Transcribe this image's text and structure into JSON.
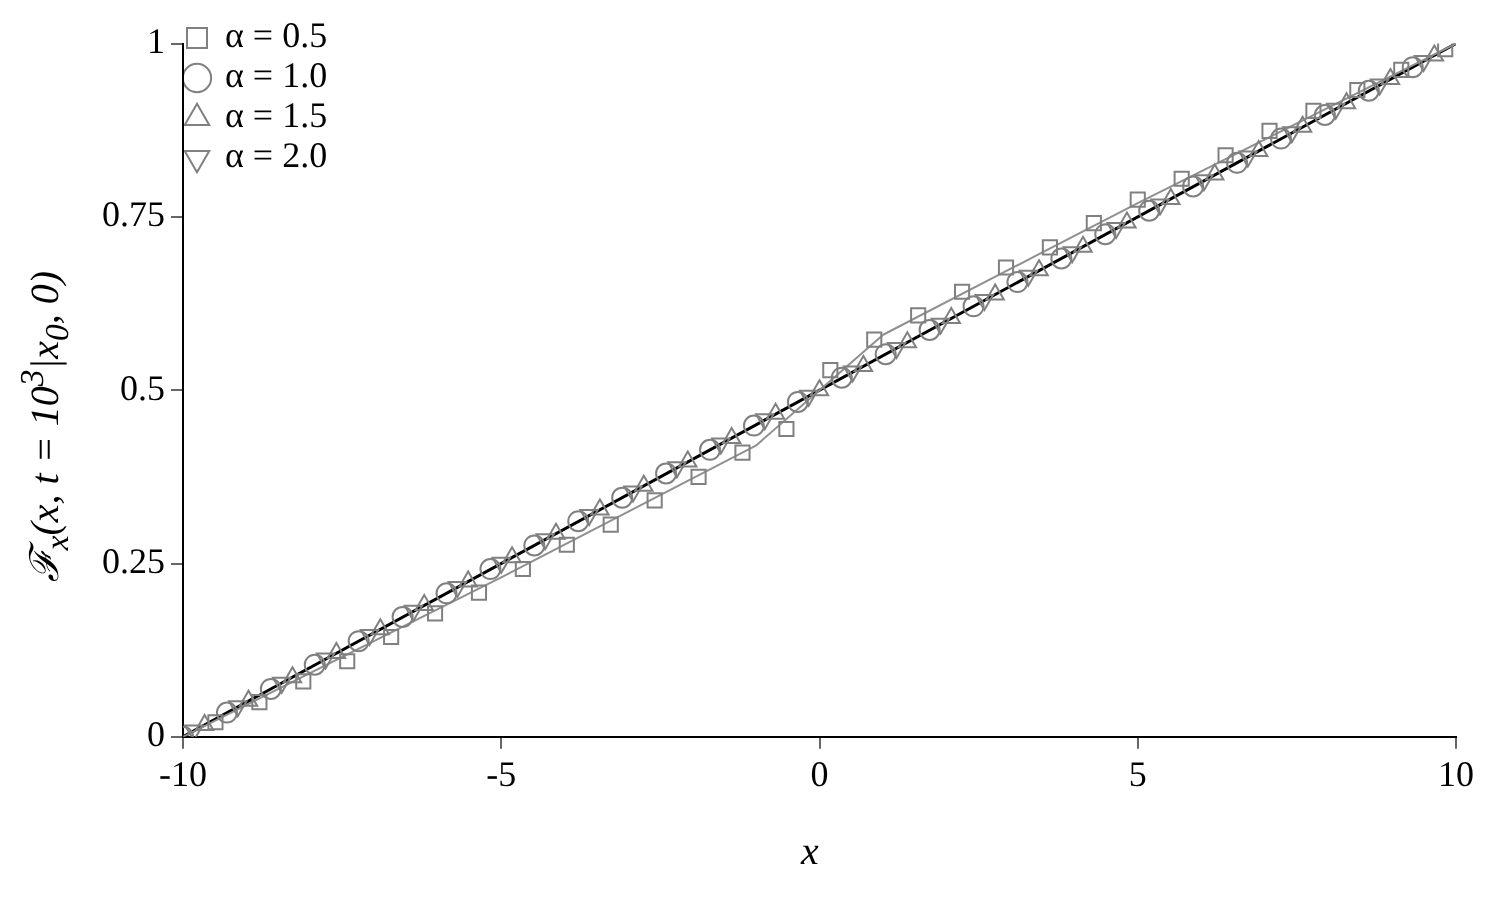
{
  "chart_data": {
    "type": "scatter",
    "xlabel": "x",
    "ylabel": "ℱ$_{x}$(x, t = 10$^{3}$|x$_{0}$, 0)",
    "series": [
      {
        "name": "α = 0.5",
        "marker": "square",
        "color": "#808080",
        "x": [
          -9.49,
          -8.8,
          -8.11,
          -7.42,
          -6.73,
          -6.04,
          -5.35,
          -4.66,
          -3.97,
          -3.28,
          -2.59,
          -1.9,
          -1.21,
          -0.52,
          0.17,
          0.86,
          1.55,
          2.24,
          2.93,
          3.62,
          4.31,
          5,
          5.69,
          6.38,
          7.07,
          7.76,
          8.45,
          9.14,
          9.83
        ],
        "values": [
          0.021,
          0.05,
          0.08,
          0.109,
          0.144,
          0.178,
          0.208,
          0.242,
          0.277,
          0.306,
          0.341,
          0.375,
          0.41,
          0.444,
          0.529,
          0.573,
          0.608,
          0.642,
          0.677,
          0.706,
          0.741,
          0.775,
          0.805,
          0.839,
          0.874,
          0.903,
          0.933,
          0.962,
          0.992
        ]
      },
      {
        "name": "α = 1.0",
        "marker": "circle",
        "color": "#808080",
        "x": [
          -10,
          -9.31,
          -8.62,
          -7.93,
          -7.24,
          -6.55,
          -5.86,
          -5.17,
          -4.48,
          -3.79,
          -3.1,
          -2.41,
          -1.72,
          -1.03,
          -0.34,
          0.35,
          1.04,
          1.73,
          2.42,
          3.11,
          3.8,
          4.49,
          5.18,
          5.87,
          6.56,
          7.25,
          7.94,
          8.63,
          9.32
        ],
        "values": [
          0,
          0.035,
          0.069,
          0.104,
          0.138,
          0.173,
          0.207,
          0.242,
          0.276,
          0.311,
          0.345,
          0.38,
          0.414,
          0.449,
          0.483,
          0.518,
          0.552,
          0.587,
          0.621,
          0.656,
          0.69,
          0.725,
          0.759,
          0.794,
          0.828,
          0.863,
          0.897,
          0.932,
          0.966
        ]
      },
      {
        "name": "α = 1.5",
        "marker": "triangle",
        "color": "#808080",
        "x": [
          -9.66,
          -8.97,
          -8.28,
          -7.59,
          -6.9,
          -6.21,
          -5.52,
          -4.83,
          -4.14,
          -3.45,
          -2.76,
          -2.07,
          -1.38,
          -0.69,
          0,
          0.69,
          1.38,
          2.07,
          2.76,
          3.45,
          4.14,
          4.83,
          5.52,
          6.21,
          6.9,
          7.59,
          8.28,
          8.97,
          9.66
        ],
        "values": [
          0.017,
          0.052,
          0.086,
          0.121,
          0.155,
          0.19,
          0.224,
          0.259,
          0.293,
          0.328,
          0.362,
          0.397,
          0.431,
          0.466,
          0.5,
          0.535,
          0.569,
          0.604,
          0.638,
          0.673,
          0.707,
          0.742,
          0.776,
          0.811,
          0.845,
          0.88,
          0.914,
          0.949,
          0.983
        ]
      },
      {
        "name": "α = 2.0",
        "marker": "triangle-down",
        "color": "#808080",
        "x": [
          -9.83,
          -9.14,
          -8.45,
          -7.76,
          -7.07,
          -6.38,
          -5.69,
          -5,
          -4.31,
          -3.62,
          -2.93,
          -2.24,
          -1.55,
          -0.86,
          -0.17,
          0.52,
          1.21,
          1.9,
          2.59,
          3.28,
          3.97,
          4.66,
          5.35,
          6.04,
          6.73,
          7.42,
          8.11,
          8.8,
          9.49
        ],
        "values": [
          0.009,
          0.044,
          0.078,
          0.113,
          0.147,
          0.182,
          0.216,
          0.251,
          0.285,
          0.32,
          0.354,
          0.389,
          0.423,
          0.458,
          0.492,
          0.527,
          0.561,
          0.596,
          0.63,
          0.665,
          0.699,
          0.734,
          0.768,
          0.803,
          0.837,
          0.872,
          0.906,
          0.941,
          0.975
        ]
      },
      {
        "type": "line",
        "marker": "none",
        "color": "#909090",
        "x": [
          -10,
          -5,
          -1,
          0,
          1,
          5,
          10
        ],
        "values": [
          0,
          0.23,
          0.42,
          0.5,
          0.58,
          0.77,
          1
        ]
      },
      {
        "type": "line",
        "marker": "none",
        "color": "#000000",
        "x": [
          -10,
          10
        ],
        "values": [
          0,
          1
        ]
      }
    ],
    "xlim": [
      -10,
      10
    ],
    "xticks": [
      -10,
      -5,
      0,
      5,
      10
    ],
    "ylim": [
      0,
      1
    ],
    "yticks": [
      0,
      0.25,
      0.5,
      0.75,
      1
    ],
    "grid": false,
    "legend": "top left"
  }
}
